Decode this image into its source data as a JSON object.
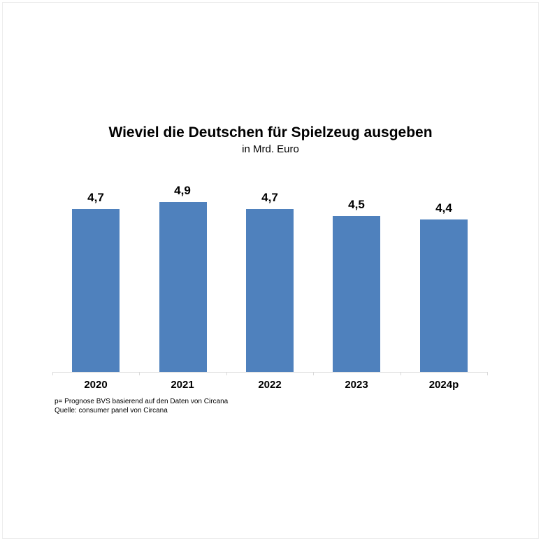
{
  "chart_data": {
    "type": "bar",
    "title": "Wieviel die Deutschen für Spielzeug ausgeben",
    "subtitle": "in Mrd. Euro",
    "categories": [
      "2020",
      "2021",
      "2022",
      "2023",
      "2024p"
    ],
    "values": [
      4.7,
      4.9,
      4.7,
      4.5,
      4.4
    ],
    "value_labels": [
      "4,7",
      "4,9",
      "4,7",
      "4,5",
      "4,4"
    ],
    "ylim": [
      0,
      5
    ],
    "grid": false,
    "legend": false,
    "data_labels_position": "above-bars",
    "bar_color": "#4F81BD",
    "axis_color": "#D9D9D9",
    "footnotes": [
      "p= Prognose BVS basierend auf den Daten von Circana",
      "Quelle: consumer panel von Circana"
    ]
  }
}
